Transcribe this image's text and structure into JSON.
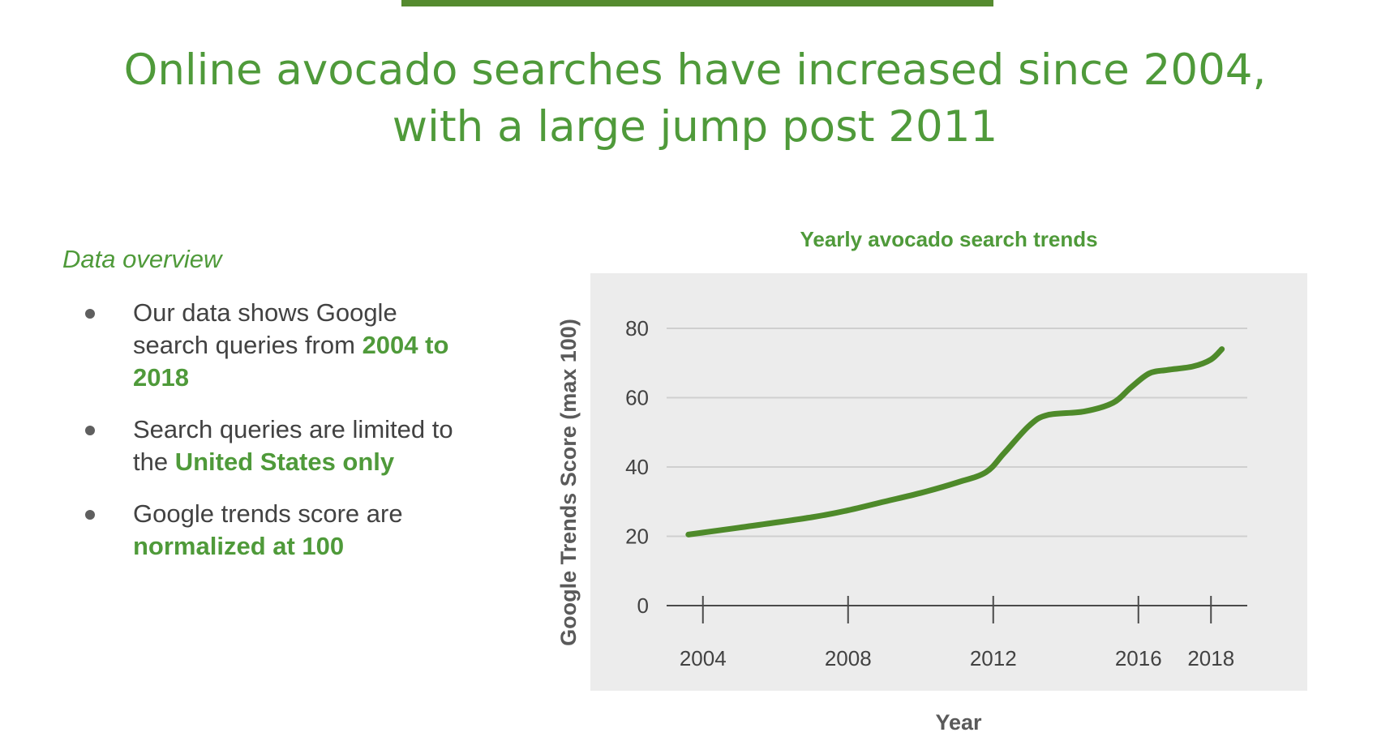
{
  "slide": {
    "title_line1": "Online avocado searches have increased since 2004,",
    "title_line2": "with a large jump post 2011"
  },
  "overview": {
    "heading": "Data overview",
    "bullets": [
      {
        "text": "Our data shows Google search queries from ",
        "highlight": "2004 to 2018"
      },
      {
        "text": "Search queries are limited to the ",
        "highlight": "United States only"
      },
      {
        "text": "Google trends score are ",
        "highlight": "normalized at 100"
      }
    ]
  },
  "colors": {
    "accent": "#4f9a3a",
    "line": "#4e8a2a",
    "plot_background": "#ececec",
    "gridline": "#cfcfcf"
  },
  "chart_data": {
    "type": "line",
    "title": "Yearly avocado search trends",
    "xlabel": "Year",
    "ylabel": "Google Trends Score (max 100)",
    "x_ticks": [
      2004,
      2008,
      2012,
      2016,
      2018
    ],
    "y_ticks": [
      0,
      20,
      40,
      60,
      80
    ],
    "xlim": [
      2003,
      2019
    ],
    "ylim": [
      0,
      80
    ],
    "grid": true,
    "series": [
      {
        "x": [
          2003.6,
          2005,
          2007,
          2008,
          2009,
          2010,
          2011,
          2011.8,
          2012.3,
          2013,
          2013.5,
          2014.5,
          2015.3,
          2015.8,
          2016.3,
          2016.8,
          2017.5,
          2018,
          2018.3
        ],
        "y": [
          20.5,
          22.5,
          25.5,
          27.5,
          30,
          32.5,
          35.5,
          38.5,
          44,
          52,
          55,
          56,
          58.5,
          63,
          67,
          68,
          69,
          71,
          74
        ]
      }
    ]
  }
}
